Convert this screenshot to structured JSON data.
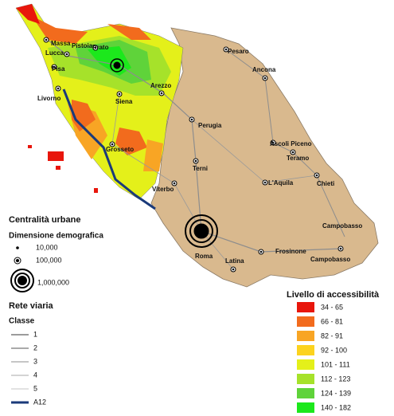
{
  "cities": [
    "Massa",
    "Lucca",
    "Pistoia",
    "Prato",
    "Pisa",
    "Livorno",
    "Arezzo",
    "Siena",
    "Pesaro",
    "Ancona",
    "Perugia",
    "Grosseto",
    "Ascoli Piceno",
    "Teramo",
    "Terni",
    "L'Aquila",
    "Chieti",
    "Viterbo",
    "Roma",
    "Frosinone",
    "Campobasso",
    "Campobasso",
    "Latina"
  ],
  "legend": {
    "urban": {
      "title": "Centralità urbane",
      "subtitle": "Dimensione demografica",
      "items": [
        "10,000",
        "100,000",
        "1,000,000"
      ]
    },
    "roads": {
      "title": "Rete viaria",
      "subtitle": "Classe",
      "items": [
        "1",
        "2",
        "3",
        "4",
        "5",
        "A12"
      ]
    },
    "accessibility": {
      "title": "Livello di accessibilità",
      "classes": [
        {
          "label": "34 - 65",
          "color": "#e8160c"
        },
        {
          "label": "66 - 81",
          "color": "#f26b1d"
        },
        {
          "label": "82 - 91",
          "color": "#f8a524"
        },
        {
          "label": "92 - 100",
          "color": "#fcd31e"
        },
        {
          "label": "101 - 111",
          "color": "#e4f01a"
        },
        {
          "label": "112 - 123",
          "color": "#a6e22a"
        },
        {
          "label": "124 - 139",
          "color": "#5fd33a"
        },
        {
          "label": "140 - 182",
          "color": "#1ce81c"
        }
      ]
    }
  }
}
